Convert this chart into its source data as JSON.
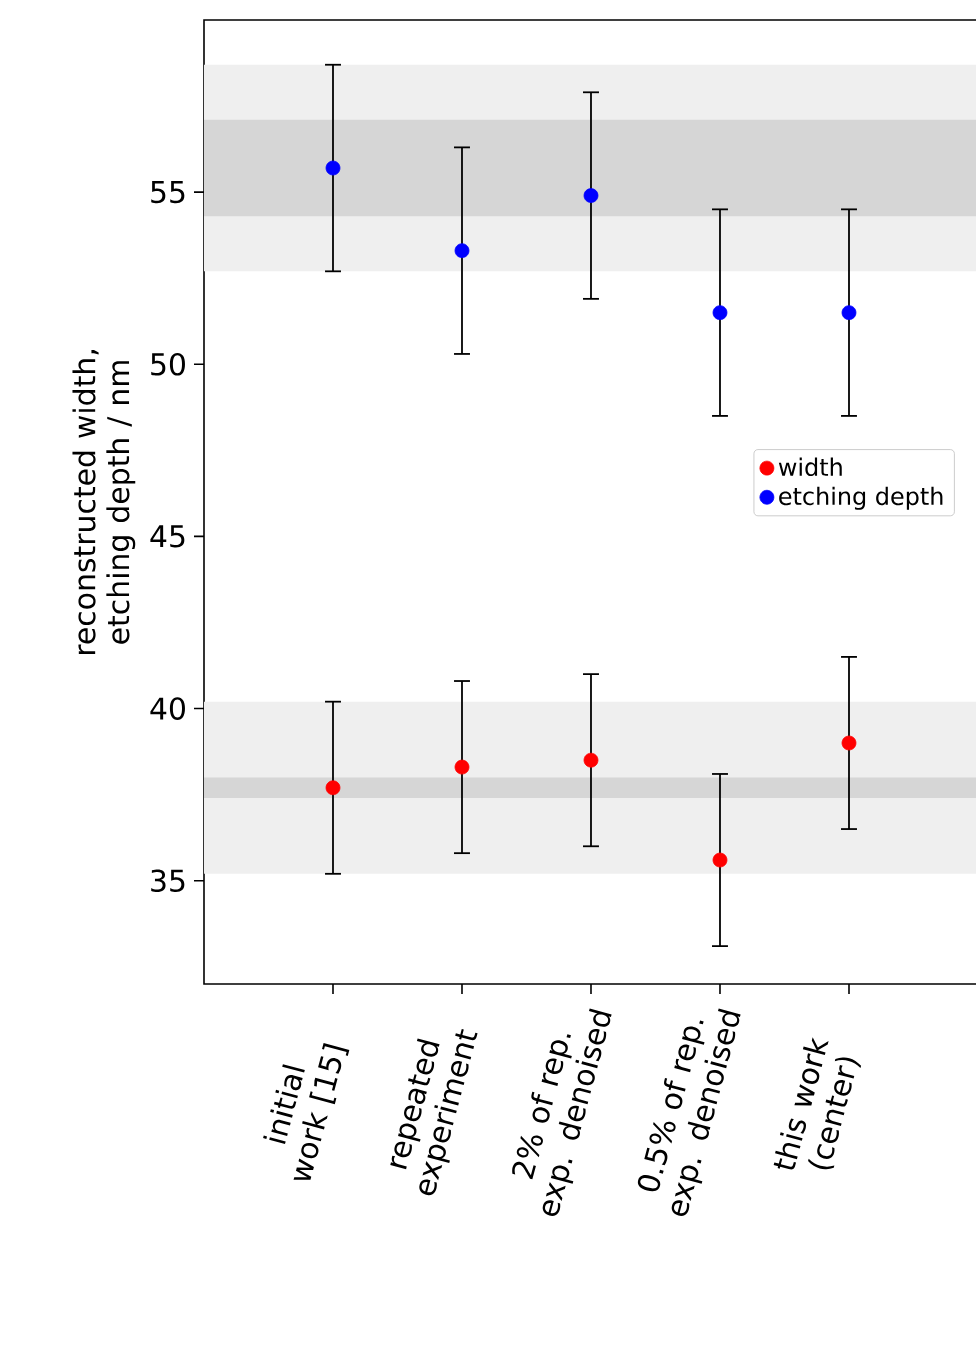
{
  "chart_data": {
    "type": "scatter",
    "ylabel": "reconstructed width, etching depth / nm",
    "categories": [
      "initial work [15]",
      "repeated experiment",
      "2% of rep. exp. denoised",
      "0.5% of rep. exp. denoised",
      "this work (center)"
    ],
    "ylim": [
      32,
      60
    ],
    "yticks": [
      35,
      40,
      45,
      50,
      55
    ],
    "series": [
      {
        "name": "width",
        "color": "#ff0000",
        "values": [
          37.7,
          38.3,
          38.5,
          35.6,
          39.0
        ],
        "errors": [
          2.5,
          2.5,
          2.5,
          2.5,
          2.5
        ]
      },
      {
        "name": "etching depth",
        "color": "#0000ff",
        "values": [
          55.7,
          53.3,
          54.9,
          51.5,
          51.5
        ],
        "errors": [
          3,
          3,
          3,
          3,
          3
        ]
      }
    ],
    "bands": [
      {
        "axis": "y",
        "from": 52.7,
        "to": 58.7,
        "color": "#efefef"
      },
      {
        "axis": "y",
        "from": 54.3,
        "to": 57.1,
        "color": "#d6d6d6"
      },
      {
        "axis": "y",
        "from": 35.2,
        "to": 40.2,
        "color": "#efefef"
      },
      {
        "axis": "y",
        "from": 37.4,
        "to": 38.0,
        "color": "#d6d6d6"
      }
    ],
    "marker": "circle",
    "legend": "right",
    "grid": false
  }
}
